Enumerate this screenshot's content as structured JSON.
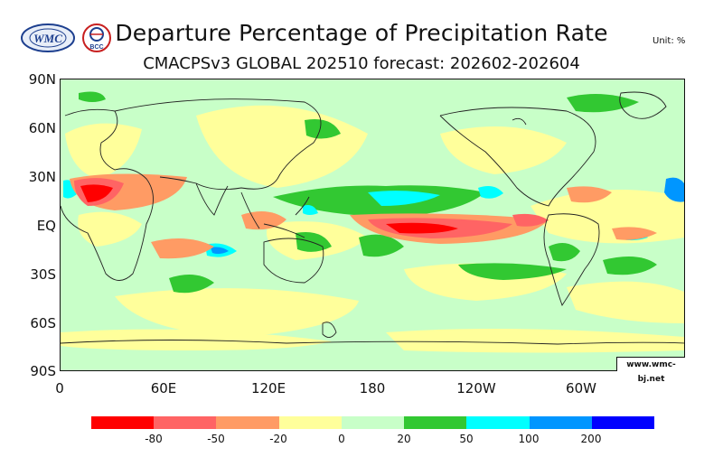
{
  "header": {
    "title": "Departure Percentage of Precipitation Rate",
    "subtitle": "CMACPSv3 GLOBAL 202510 forecast: 202602-202604",
    "unit": "Unit: %",
    "logos": [
      {
        "name": "wmc-logo",
        "text": "WMC"
      },
      {
        "name": "bcc-logo",
        "text": "BCC"
      }
    ]
  },
  "map": {
    "lat_labels": [
      "90N",
      "60N",
      "30N",
      "EQ",
      "30S",
      "60S",
      "90S"
    ],
    "lon_labels": [
      "0",
      "60E",
      "120E",
      "180",
      "120W",
      "60W"
    ],
    "credit": "www.wmc-bj.net"
  },
  "legend": {
    "colors": [
      "#ff0000",
      "#ff6464",
      "#ff9b64",
      "#ffff9b",
      "#c8ffc8",
      "#32c832",
      "#00ffff",
      "#0096ff",
      "#0000ff"
    ],
    "labels": [
      "-80",
      "-50",
      "-20",
      "0",
      "20",
      "50",
      "100",
      "200"
    ]
  },
  "colors": {
    "background_field": "#c8ffc8"
  }
}
